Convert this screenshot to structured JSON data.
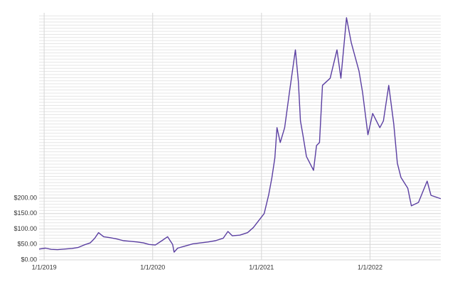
{
  "chart_data": {
    "type": "line",
    "x": [
      "2018-12-15",
      "2019-01-05",
      "2019-01-25",
      "2019-02-15",
      "2019-03-10",
      "2019-04-05",
      "2019-04-25",
      "2019-05-15",
      "2019-06-05",
      "2019-06-20",
      "2019-07-03",
      "2019-07-20",
      "2019-08-10",
      "2019-09-01",
      "2019-09-25",
      "2019-10-20",
      "2019-11-10",
      "2019-12-01",
      "2019-12-20",
      "2020-01-10",
      "2020-02-01",
      "2020-02-20",
      "2020-03-08",
      "2020-03-13",
      "2020-03-25",
      "2020-04-20",
      "2020-05-15",
      "2020-06-10",
      "2020-07-05",
      "2020-07-30",
      "2020-08-25",
      "2020-09-10",
      "2020-09-25",
      "2020-10-20",
      "2020-11-15",
      "2020-12-05",
      "2020-12-25",
      "2021-01-10",
      "2021-01-25",
      "2021-02-05",
      "2021-02-15",
      "2021-02-22",
      "2021-03-05",
      "2021-03-20",
      "2021-04-05",
      "2021-04-25",
      "2021-05-05",
      "2021-05-12",
      "2021-05-20",
      "2021-06-01",
      "2021-06-25",
      "2021-07-05",
      "2021-07-15",
      "2021-07-25",
      "2021-08-20",
      "2021-09-12",
      "2021-09-25",
      "2021-10-14",
      "2021-10-30",
      "2021-11-25",
      "2021-12-07",
      "2021-12-25",
      "2022-01-10",
      "2022-02-03",
      "2022-02-15",
      "2022-03-05",
      "2022-03-22",
      "2022-04-03",
      "2022-04-15",
      "2022-05-08",
      "2022-05-20",
      "2022-06-13",
      "2022-07-12",
      "2022-07-25",
      "2022-08-27"
    ],
    "values": [
      35,
      38,
      34,
      33,
      35,
      37,
      40,
      48,
      55,
      70,
      88,
      75,
      72,
      68,
      62,
      60,
      58,
      55,
      50,
      48,
      62,
      75,
      50,
      25,
      38,
      45,
      52,
      55,
      58,
      62,
      70,
      92,
      78,
      80,
      88,
      105,
      130,
      150,
      210,
      267,
      330,
      428,
      380,
      428,
      542,
      680,
      577,
      450,
      405,
      335,
      290,
      370,
      380,
      565,
      588,
      680,
      588,
      784,
      703,
      611,
      542,
      405,
      474,
      428,
      450,
      565,
      439,
      313,
      267,
      232,
      175,
      186,
      255,
      209,
      198
    ],
    "color": "#5a3ea1",
    "xlim": [
      "2018-12-15",
      "2022-08-27"
    ],
    "xticks": [
      {
        "value": "2019-01-01",
        "label": "1/1/2019"
      },
      {
        "value": "2020-01-01",
        "label": "1/1/2020"
      },
      {
        "value": "2021-01-01",
        "label": "1/1/2021"
      },
      {
        "value": "2022-01-01",
        "label": "1/1/2022"
      }
    ],
    "ylim": [
      0,
      800
    ],
    "yticks": [
      {
        "value": 0,
        "label": "$0.00"
      },
      {
        "value": 50,
        "label": "$50.00"
      },
      {
        "value": 100,
        "label": "$100.00"
      },
      {
        "value": 150,
        "label": "$150.00"
      },
      {
        "value": 200,
        "label": "$200.00"
      }
    ],
    "minor_yticks": [
      10,
      20,
      30,
      40,
      60,
      70,
      80,
      90,
      110,
      120,
      130,
      140,
      160,
      170,
      180,
      190,
      210,
      220,
      230,
      240,
      250,
      260,
      270,
      280,
      290,
      300,
      310,
      320,
      330,
      340,
      350,
      360,
      370,
      380,
      390,
      400,
      410,
      420,
      430,
      440,
      450,
      460,
      470,
      480,
      490,
      500,
      510,
      520,
      530,
      540,
      550,
      560,
      570,
      580,
      590,
      600,
      610,
      620,
      630,
      640,
      650,
      660,
      670,
      680,
      690,
      700,
      710,
      720,
      730,
      740,
      750,
      760,
      770,
      780,
      790
    ],
    "grid": true
  }
}
